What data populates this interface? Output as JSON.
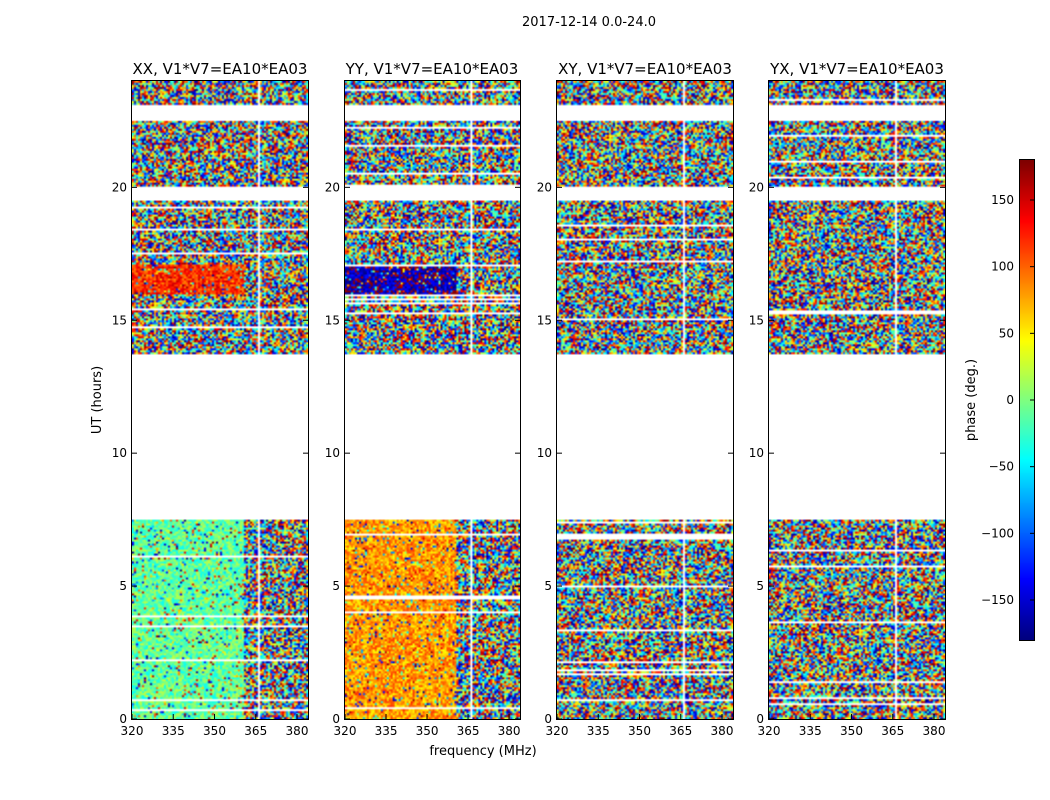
{
  "chart_data": {
    "type": "heatmap",
    "title": "2017-12-14 0.0-24.0",
    "xlabel": "frequency (MHz)",
    "ylabel": "UT (hours)",
    "xlim": [
      320,
      384
    ],
    "ylim": [
      0,
      24
    ],
    "x_ticks": [
      320,
      335,
      350,
      365,
      380
    ],
    "y_ticks": [
      0,
      5,
      10,
      15,
      20
    ],
    "colorbar": {
      "label": "phase (deg.)",
      "range": [
        -180,
        180
      ],
      "ticks": [
        150,
        100,
        50,
        0,
        -50,
        -100,
        -150
      ],
      "colormap": "jet"
    },
    "panels": [
      {
        "name": "xx",
        "title": "XX, V1*V7=EA10*EA03",
        "pattern": "coherent_green_red"
      },
      {
        "name": "yy",
        "title": "YY, V1*V7=EA10*EA03",
        "pattern": "coherent_orange_blue"
      },
      {
        "name": "xy",
        "title": "XY, V1*V7=EA10*EA03",
        "pattern": "noise"
      },
      {
        "name": "yx",
        "title": "YX, V1*V7=EA10*EA03",
        "pattern": "noise"
      }
    ],
    "data_gaps_hours": [
      [
        6.2,
        6.25
      ],
      [
        7.5,
        13.7
      ],
      [
        19.5,
        20.0
      ],
      [
        22.5,
        23.1
      ]
    ],
    "coherent_phase_deg": {
      "xx": [
        {
          "t": [
            16.0,
            17.1
          ],
          "phase": 120
        },
        {
          "t": [
            0.0,
            13.7
          ],
          "phase": -10
        }
      ],
      "yy": [
        {
          "t": [
            16.0,
            17.1
          ],
          "phase": -160
        },
        {
          "t": [
            0.0,
            13.7
          ],
          "phase": 80
        }
      ]
    }
  }
}
